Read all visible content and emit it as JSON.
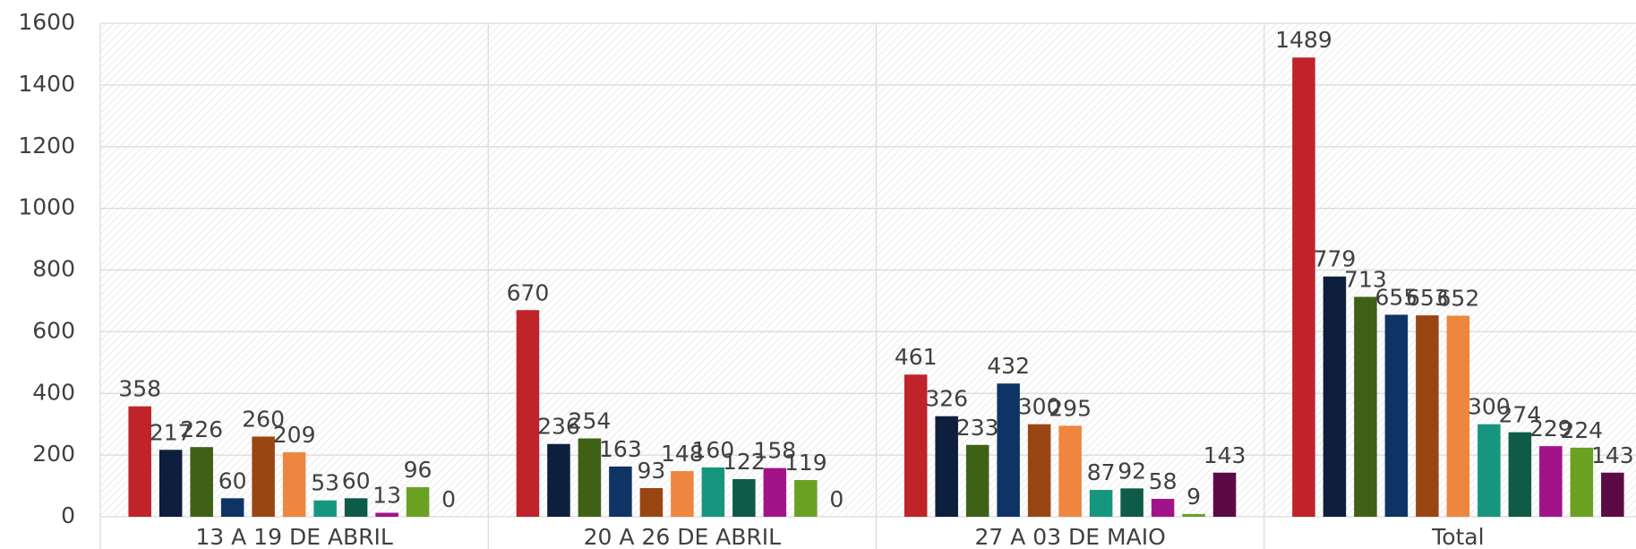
{
  "chart_data": {
    "type": "bar",
    "categories": [
      "13 A 19 DE ABRIL",
      "20 A 26 DE ABRIL",
      "27 A 03 DE MAIO",
      "Total"
    ],
    "series": [
      {
        "color": "#c0232a",
        "values": [
          358,
          670,
          461,
          1489
        ]
      },
      {
        "color": "#0d1f3c",
        "values": [
          217,
          236,
          326,
          779
        ]
      },
      {
        "color": "#3f6116",
        "values": [
          226,
          254,
          233,
          713
        ]
      },
      {
        "color": "#0e3466",
        "values": [
          60,
          163,
          432,
          655
        ]
      },
      {
        "color": "#9a4613",
        "values": [
          260,
          93,
          300,
          653
        ]
      },
      {
        "color": "#ee8640",
        "values": [
          209,
          148,
          295,
          652
        ]
      },
      {
        "color": "#16967e",
        "values": [
          53,
          160,
          87,
          300
        ]
      },
      {
        "color": "#0e5b48",
        "values": [
          60,
          122,
          92,
          274
        ]
      },
      {
        "color": "#a2138a",
        "values": [
          13,
          158,
          58,
          229
        ]
      },
      {
        "color": "#6aa123",
        "values": [
          96,
          119,
          9,
          224
        ]
      },
      {
        "color": "#5c0a44",
        "values": [
          0,
          0,
          143,
          143
        ]
      }
    ],
    "ylim": [
      0,
      1600
    ],
    "yticks": [
      0,
      200,
      400,
      600,
      800,
      1000,
      1200,
      1400,
      1600
    ],
    "grid": true
  }
}
